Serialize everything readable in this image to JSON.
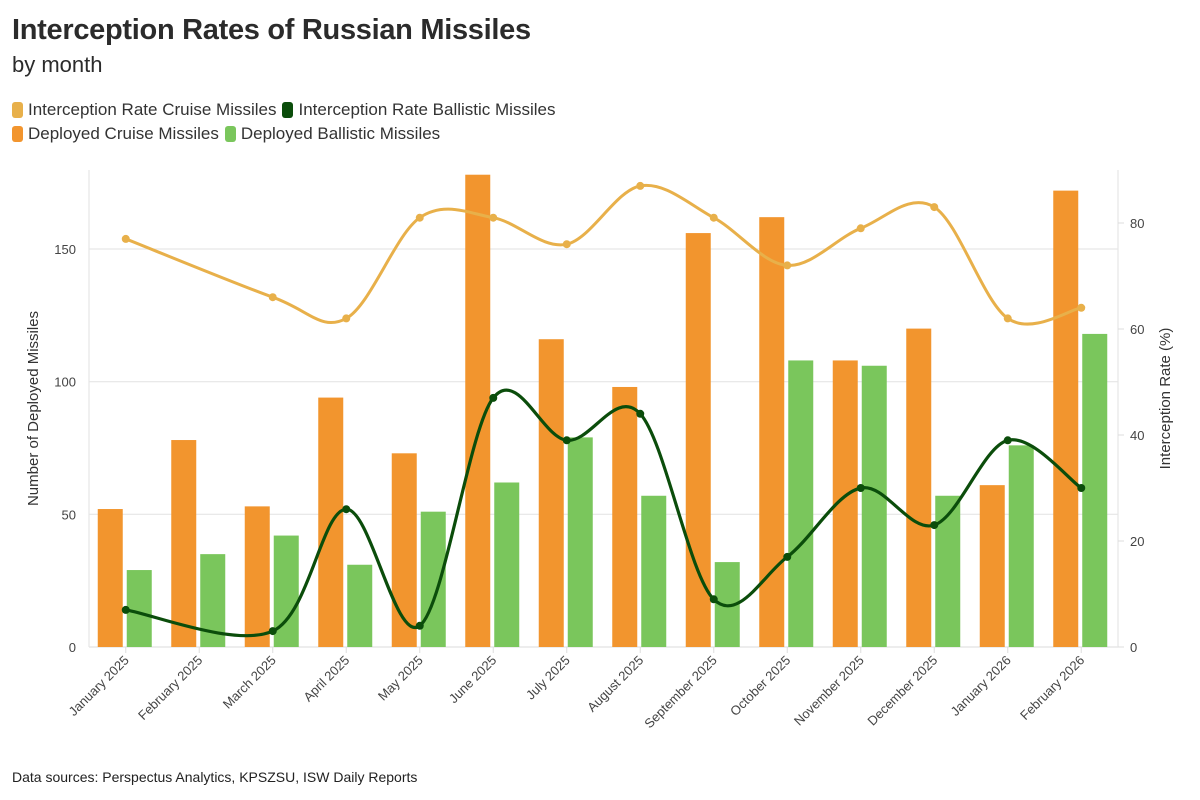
{
  "header": {
    "title": "Interception Rates of Russian Missiles",
    "subtitle": "by month"
  },
  "legend": [
    {
      "label": "Interception Rate Cruise Missiles",
      "color": "#E8B04A"
    },
    {
      "label": "Interception Rate Ballistic Missiles",
      "color": "#0B4D0B"
    },
    {
      "label": "Deployed Cruise Missiles",
      "color": "#F2952E"
    },
    {
      "label": "Deployed Ballistic Missiles",
      "color": "#7AC65C"
    }
  ],
  "footer": {
    "source": "Data sources: Perspectus Analytics, KPSZSU, ISW Daily Reports"
  },
  "chart_data": {
    "type": "bar",
    "title": "Interception Rates of Russian Missiles",
    "subtitle": "by month",
    "categories": [
      "January 2025",
      "February 2025",
      "March 2025",
      "April 2025",
      "May 2025",
      "June 2025",
      "July 2025",
      "August 2025",
      "September 2025",
      "October 2025",
      "November 2025",
      "December 2025",
      "January 2026",
      "February 2026"
    ],
    "xlabel": "",
    "ylabel": "Number of Deployed Missiles",
    "y2label": "Interception Rate (%)",
    "ylim": [
      0,
      180
    ],
    "y2lim": [
      0,
      90
    ],
    "yticks": [
      0,
      50,
      100,
      150
    ],
    "y2ticks": [
      0,
      20,
      40,
      60,
      80
    ],
    "grid": true,
    "legend_position": "top-left",
    "series": [
      {
        "name": "Deployed Cruise Missiles",
        "type": "bar",
        "axis": "left",
        "color": "#F2952E",
        "values": [
          52,
          78,
          53,
          94,
          73,
          178,
          116,
          98,
          156,
          162,
          108,
          120,
          61,
          172
        ]
      },
      {
        "name": "Deployed Ballistic Missiles",
        "type": "bar",
        "axis": "left",
        "color": "#7AC65C",
        "values": [
          29,
          35,
          42,
          31,
          51,
          62,
          79,
          57,
          32,
          108,
          106,
          57,
          76,
          118
        ]
      },
      {
        "name": "Interception Rate Cruise Missiles",
        "type": "line",
        "axis": "right",
        "smooth": true,
        "color": "#E8B04A",
        "values": [
          77,
          null,
          66,
          62,
          81,
          81,
          76,
          87,
          81,
          72,
          79,
          83,
          62,
          64
        ]
      },
      {
        "name": "Interception Rate Ballistic Missiles",
        "type": "line",
        "axis": "right",
        "smooth": true,
        "color": "#0B4D0B",
        "values": [
          7,
          null,
          3,
          26,
          4,
          47,
          39,
          44,
          9,
          17,
          30,
          23,
          39,
          30
        ]
      }
    ]
  }
}
